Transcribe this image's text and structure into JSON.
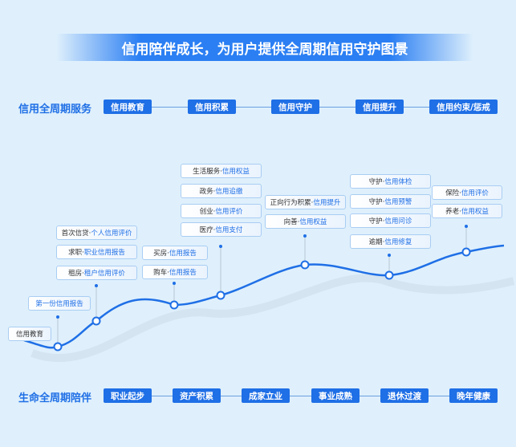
{
  "title": "信用陪伴成长，为用户提供全周期信用守护图景",
  "top_row": {
    "label": "信用全周期服务",
    "items": [
      "信用教育",
      "信用积累",
      "信用守护",
      "信用提升",
      "信用约束/惩戒"
    ]
  },
  "bottom_row": {
    "label": "生命全周期陪伴",
    "items": [
      "职业起步",
      "资产积累",
      "成家立业",
      "事业成熟",
      "退休过渡",
      "晚年健康"
    ]
  },
  "stages": [
    {
      "boxes": [
        {
          "prefix": "",
          "text": "信用教育",
          "plain": true
        }
      ]
    },
    {
      "boxes": [
        {
          "prefix": "",
          "text": "第一份信用报告"
        }
      ]
    },
    {
      "boxes": [
        {
          "prefix": "首次信贷·",
          "text": "个人信用评价"
        },
        {
          "prefix": "求职·",
          "text": "职业信用报告"
        },
        {
          "prefix": "租房·",
          "text": "租户信用评价"
        }
      ]
    },
    {
      "boxes": [
        {
          "prefix": "买房·",
          "text": "信用报告"
        },
        {
          "prefix": "购车·",
          "text": "信用报告"
        }
      ]
    },
    {
      "boxes": [
        {
          "prefix": "生活服务·",
          "text": "信用权益"
        },
        {
          "prefix": "政务·",
          "text": "信用追缴"
        },
        {
          "prefix": "创业·",
          "text": "信用评价"
        },
        {
          "prefix": "医疗·",
          "text": "信用支付"
        }
      ]
    },
    {
      "boxes": [
        {
          "prefix": "正向行为积累·",
          "text": "信用提升"
        },
        {
          "prefix": "向善·",
          "text": "信用权益"
        }
      ]
    },
    {
      "boxes": [
        {
          "prefix": "守护·",
          "text": "信用体检"
        },
        {
          "prefix": "守护·",
          "text": "信用预警"
        },
        {
          "prefix": "守护·",
          "text": "信用问诊"
        },
        {
          "prefix": "逾期·",
          "text": "信用修复"
        }
      ]
    },
    {
      "boxes": [
        {
          "prefix": "保险·",
          "text": "信用评价"
        },
        {
          "prefix": "养老·",
          "text": "信用权益"
        }
      ]
    }
  ],
  "colors": {
    "accent": "#1f6fe6",
    "background": "#dff0fc"
  }
}
